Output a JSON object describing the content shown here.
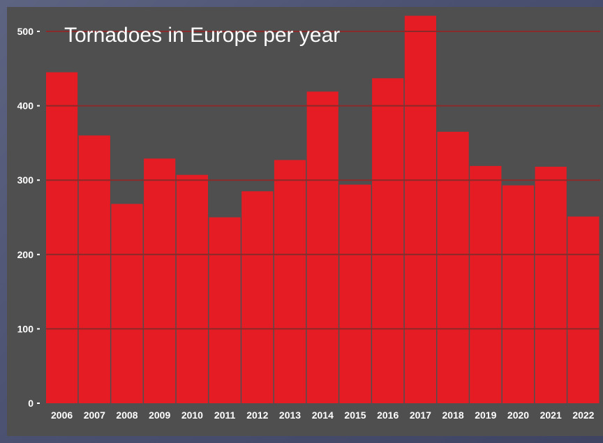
{
  "chart_data": {
    "type": "bar",
    "title": "Tornadoes in Europe per year",
    "xlabel": "",
    "ylabel": "",
    "categories": [
      "2006",
      "2007",
      "2008",
      "2009",
      "2010",
      "2011",
      "2012",
      "2013",
      "2014",
      "2015",
      "2016",
      "2017",
      "2018",
      "2019",
      "2020",
      "2021",
      "2022"
    ],
    "values": [
      445,
      360,
      268,
      329,
      307,
      250,
      285,
      327,
      419,
      294,
      437,
      521,
      365,
      319,
      293,
      318,
      251
    ],
    "ylim": [
      0,
      530
    ],
    "yticks": [
      0,
      100,
      200,
      300,
      400,
      500
    ],
    "grid": true,
    "colors": {
      "bar": "#e51c23",
      "background": "#4f4f4f",
      "gridline": "#8a2a2a",
      "text": "#ffffff"
    }
  }
}
